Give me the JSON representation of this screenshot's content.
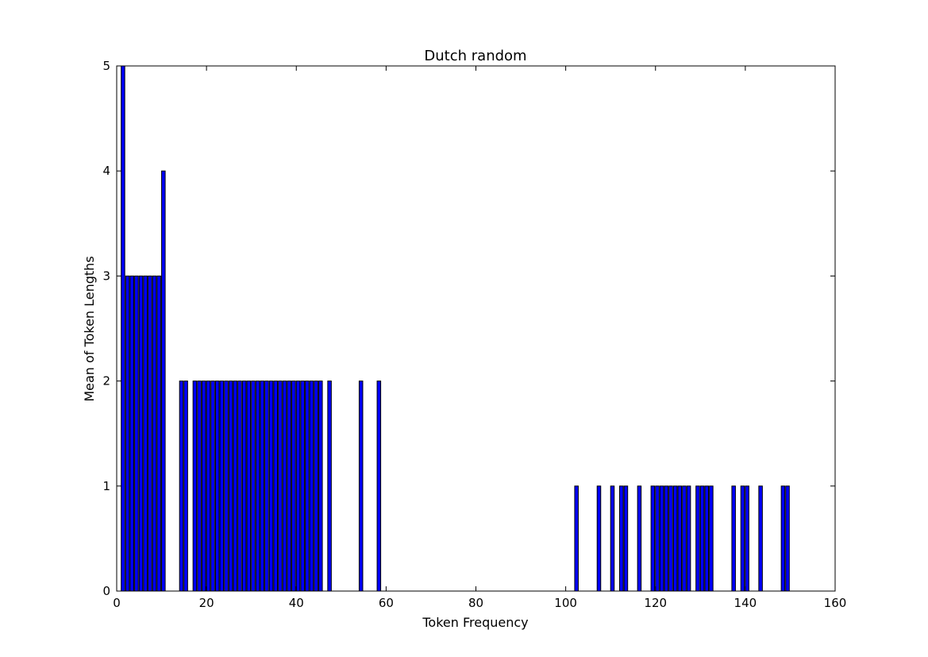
{
  "chart_data": {
    "type": "bar",
    "title": "Dutch random",
    "xlabel": "Token Frequency",
    "ylabel": "Mean of Token Lengths",
    "xlim": [
      0,
      160
    ],
    "ylim": [
      0,
      5
    ],
    "xticks": [
      0,
      20,
      40,
      60,
      80,
      100,
      120,
      140,
      160
    ],
    "yticks": [
      0,
      1,
      2,
      3,
      4,
      5
    ],
    "grid": false,
    "bar_color": "#0000ff",
    "edge_color": "#000000",
    "bar_width": 0.8,
    "x": [
      1,
      2,
      3,
      4,
      5,
      6,
      7,
      8,
      9,
      10,
      14,
      15,
      17,
      18,
      19,
      20,
      21,
      22,
      23,
      24,
      25,
      26,
      27,
      28,
      29,
      30,
      31,
      32,
      33,
      34,
      35,
      36,
      37,
      38,
      39,
      40,
      41,
      42,
      43,
      44,
      45,
      47,
      54,
      58,
      102,
      107,
      110,
      112,
      113,
      116,
      119,
      120,
      121,
      122,
      123,
      124,
      125,
      126,
      127,
      129,
      130,
      131,
      132,
      137,
      139,
      140,
      143,
      148,
      149
    ],
    "values": [
      5,
      3,
      3,
      3,
      3,
      3,
      3,
      3,
      3,
      4,
      2,
      2,
      2,
      2,
      2,
      2,
      2,
      2,
      2,
      2,
      2,
      2,
      2,
      2,
      2,
      2,
      2,
      2,
      2,
      2,
      2,
      2,
      2,
      2,
      2,
      2,
      2,
      2,
      2,
      2,
      2,
      2,
      2,
      2,
      1,
      1,
      1,
      1,
      1,
      1,
      1,
      1,
      1,
      1,
      1,
      1,
      1,
      1,
      1,
      1,
      1,
      1,
      1,
      1,
      1,
      1,
      1,
      1,
      1
    ]
  }
}
